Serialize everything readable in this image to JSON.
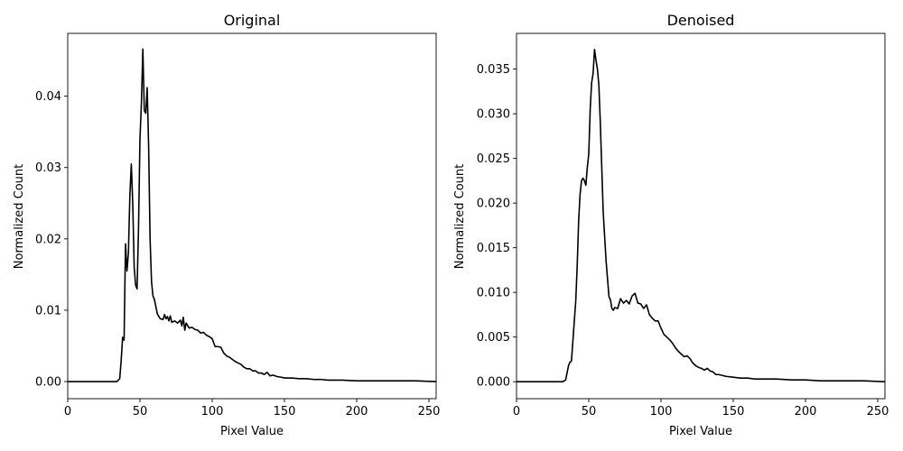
{
  "chart_data": [
    {
      "type": "line",
      "title": "Original",
      "xlabel": "Pixel Value",
      "ylabel": "Normalized Count",
      "xlim": [
        0,
        255
      ],
      "ylim": [
        -0.0024,
        0.0488
      ],
      "xticks": [
        0,
        50,
        100,
        150,
        200,
        250
      ],
      "yticks": [
        0.0,
        0.01,
        0.02,
        0.03,
        0.04
      ],
      "ytick_labels": [
        "0.00",
        "0.01",
        "0.02",
        "0.03",
        "0.04"
      ],
      "grid": false,
      "color": "#000000",
      "series": [
        {
          "x": [
            0,
            34,
            35,
            36,
            37,
            38,
            39,
            40,
            41,
            42,
            43,
            44,
            45,
            46,
            47,
            48,
            49,
            50,
            51,
            52,
            53,
            54,
            55,
            56,
            57,
            58,
            59,
            60,
            62,
            64,
            66,
            67,
            68,
            69,
            70,
            71,
            72,
            74,
            76,
            78,
            79,
            80,
            81,
            82,
            84,
            86,
            88,
            90,
            92,
            94,
            96,
            98,
            100,
            102,
            104,
            106,
            108,
            110,
            112,
            114,
            116,
            118,
            120,
            122,
            124,
            126,
            128,
            130,
            132,
            134,
            136,
            138,
            140,
            142,
            145,
            148,
            150,
            155,
            160,
            165,
            170,
            175,
            180,
            190,
            200,
            210,
            220,
            230,
            240,
            255
          ],
          "y": [
            0.0,
            0.0,
            0.0002,
            0.0004,
            0.003,
            0.0062,
            0.0058,
            0.0193,
            0.0155,
            0.018,
            0.026,
            0.0305,
            0.025,
            0.016,
            0.0135,
            0.013,
            0.0215,
            0.034,
            0.039,
            0.0466,
            0.038,
            0.0376,
            0.0412,
            0.033,
            0.02,
            0.014,
            0.012,
            0.0115,
            0.0095,
            0.0088,
            0.0087,
            0.0094,
            0.0088,
            0.0091,
            0.0085,
            0.0092,
            0.0083,
            0.0085,
            0.0082,
            0.0086,
            0.0078,
            0.009,
            0.0072,
            0.0082,
            0.0075,
            0.0076,
            0.0073,
            0.0072,
            0.0068,
            0.0069,
            0.0065,
            0.0063,
            0.006,
            0.0049,
            0.0049,
            0.0048,
            0.004,
            0.0036,
            0.0034,
            0.0031,
            0.0028,
            0.0026,
            0.0024,
            0.002,
            0.0018,
            0.0018,
            0.0015,
            0.0015,
            0.0012,
            0.0012,
            0.001,
            0.0013,
            0.0008,
            0.0009,
            0.0007,
            0.0006,
            0.0005,
            0.0005,
            0.0004,
            0.0004,
            0.0003,
            0.0003,
            0.0002,
            0.0002,
            0.0001,
            0.0001,
            0.0001,
            0.0001,
            0.0001,
            0.0
          ]
        }
      ]
    },
    {
      "type": "line",
      "title": "Denoised",
      "xlabel": "Pixel Value",
      "ylabel": "Normalized Count",
      "xlim": [
        0,
        255
      ],
      "ylim": [
        -0.0019,
        0.039
      ],
      "xticks": [
        0,
        50,
        100,
        150,
        200,
        250
      ],
      "yticks": [
        0.0,
        0.005,
        0.01,
        0.015,
        0.02,
        0.025,
        0.03,
        0.035
      ],
      "ytick_labels": [
        "0.000",
        "0.005",
        "0.010",
        "0.015",
        "0.020",
        "0.025",
        "0.030",
        "0.035"
      ],
      "grid": false,
      "color": "#000000",
      "series": [
        {
          "x": [
            0,
            32,
            34,
            35,
            36,
            37,
            38,
            39,
            40,
            41,
            42,
            43,
            44,
            45,
            46,
            47,
            48,
            49,
            50,
            51,
            52,
            53,
            54,
            55,
            56,
            57,
            58,
            59,
            60,
            62,
            64,
            65,
            66,
            67,
            68,
            70,
            72,
            74,
            76,
            78,
            80,
            82,
            84,
            86,
            88,
            90,
            92,
            94,
            96,
            98,
            100,
            102,
            104,
            106,
            108,
            110,
            112,
            114,
            116,
            118,
            120,
            122,
            124,
            126,
            128,
            130,
            132,
            134,
            136,
            138,
            140,
            145,
            150,
            155,
            160,
            165,
            170,
            180,
            190,
            200,
            210,
            220,
            230,
            240,
            255
          ],
          "y": [
            0.0,
            0.0,
            0.0002,
            0.001,
            0.0018,
            0.0022,
            0.0023,
            0.0045,
            0.0068,
            0.009,
            0.013,
            0.018,
            0.021,
            0.0225,
            0.0228,
            0.0225,
            0.022,
            0.024,
            0.0255,
            0.0305,
            0.0335,
            0.0345,
            0.0372,
            0.036,
            0.035,
            0.0332,
            0.029,
            0.024,
            0.019,
            0.0135,
            0.0095,
            0.0092,
            0.0082,
            0.008,
            0.0083,
            0.0082,
            0.0093,
            0.0088,
            0.0091,
            0.0087,
            0.0096,
            0.0099,
            0.0088,
            0.0087,
            0.0082,
            0.0086,
            0.0075,
            0.0071,
            0.0068,
            0.0068,
            0.006,
            0.0053,
            0.005,
            0.0047,
            0.0043,
            0.0038,
            0.0034,
            0.0031,
            0.0028,
            0.0029,
            0.0026,
            0.0021,
            0.0018,
            0.0016,
            0.0015,
            0.0013,
            0.0015,
            0.0012,
            0.0011,
            0.0008,
            0.0008,
            0.0006,
            0.0005,
            0.0004,
            0.0004,
            0.0003,
            0.0003,
            0.0003,
            0.0002,
            0.0002,
            0.0001,
            0.0001,
            0.0001,
            0.0001,
            0.0
          ]
        }
      ]
    }
  ]
}
